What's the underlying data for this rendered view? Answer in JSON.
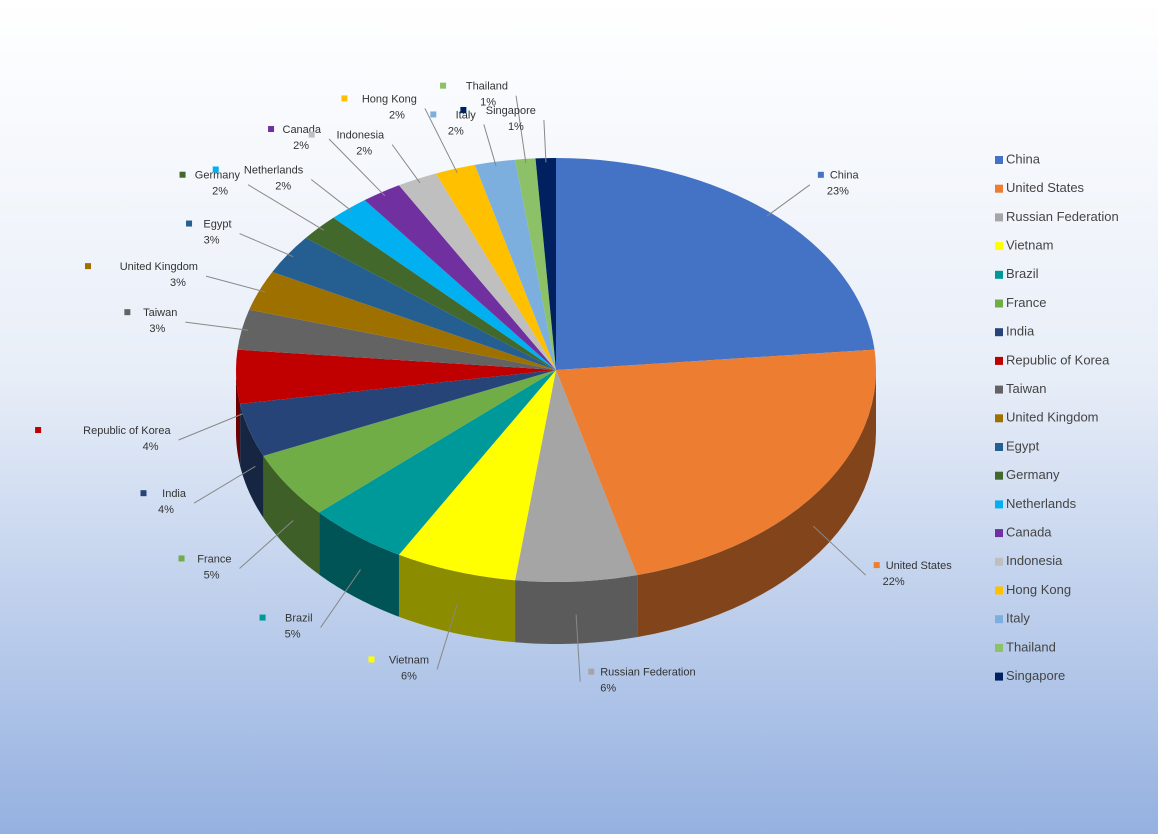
{
  "chart_data": {
    "type": "pie",
    "categories": [
      "China",
      "United States",
      "Russian Federation",
      "Vietnam",
      "Brazil",
      "France",
      "India",
      "Republic of Korea",
      "Taiwan",
      "United Kingdom",
      "Egypt",
      "Germany",
      "Netherlands",
      "Canada",
      "Indonesia",
      "Hong Kong",
      "Italy",
      "Thailand",
      "Singapore"
    ],
    "values": [
      23,
      22,
      6,
      6,
      5,
      5,
      4,
      4,
      3,
      3,
      3,
      2,
      2,
      2,
      2,
      2,
      2,
      1,
      1
    ],
    "value_labels": [
      "23%",
      "22%",
      "6%",
      "6%",
      "5%",
      "5%",
      "4%",
      "4%",
      "3%",
      "3%",
      "3%",
      "2%",
      "2%",
      "2%",
      "2%",
      "2%",
      "2%",
      "1%",
      "1%"
    ],
    "colors": [
      "#4472c4",
      "#ed7d31",
      "#a5a5a5",
      "#ffff00",
      "#00999a",
      "#70ad47",
      "#264478",
      "#c00000",
      "#636363",
      "#9e7000",
      "#255e91",
      "#43682b",
      "#00b0f0",
      "#7030a0",
      "#bfbfbf",
      "#ffc000",
      "#7cafdd",
      "#8cc168",
      "#002060"
    ],
    "legend": "right"
  }
}
